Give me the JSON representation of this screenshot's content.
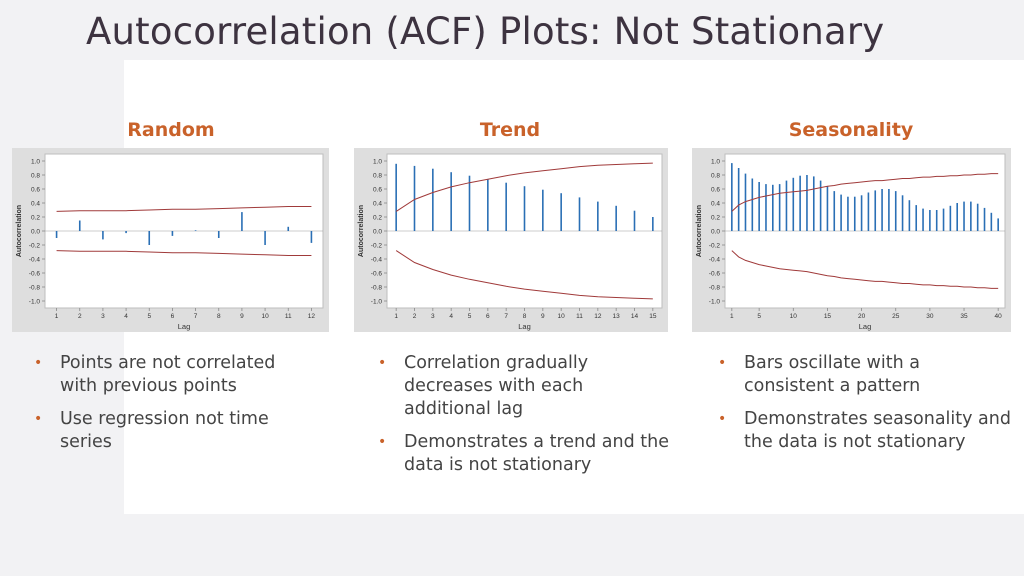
{
  "slide": {
    "title": "Autocorrelation (ACF) Plots: Not Stationary"
  },
  "columns": [
    {
      "heading": "Random",
      "bullets": [
        "Points are not correlated with previous points",
        "Use regression not time series"
      ]
    },
    {
      "heading": "Trend",
      "bullets": [
        "Correlation gradually decreases with each additional lag",
        "Demonstrates a trend and the data is not stationary"
      ]
    },
    {
      "heading": "Seasonality",
      "bullets": [
        "Bars oscillate with a consistent a pattern",
        "Demonstrates seasonality and the data is not stationary"
      ]
    }
  ],
  "colors": {
    "bar": "#2a6fb5",
    "limit": "#a03a3a",
    "heading": "#c9622a"
  },
  "chart_data": [
    {
      "type": "bar",
      "title": "",
      "xlabel": "Lag",
      "ylabel": "Autocorrelation",
      "ylim": [
        -1.1,
        1.1
      ],
      "yticks": [
        1.0,
        0.8,
        0.6,
        0.4,
        0.2,
        0.0,
        -0.2,
        -0.4,
        -0.6,
        -0.8,
        -1.0
      ],
      "ytick_labels": [
        "1.0",
        "0.8",
        "0.6",
        "0.4",
        "0.2",
        "0.0",
        "-0.2",
        "-0.4",
        "-0.6",
        "-0.8",
        "-1.0"
      ],
      "xlim": [
        0.5,
        12.5
      ],
      "xticks": [
        1,
        2,
        3,
        4,
        5,
        6,
        7,
        8,
        9,
        10,
        11,
        12
      ],
      "x": [
        1,
        2,
        3,
        4,
        5,
        6,
        7,
        8,
        9,
        10,
        11,
        12
      ],
      "values": [
        -0.1,
        0.15,
        -0.12,
        -0.03,
        -0.2,
        -0.07,
        0.01,
        -0.1,
        0.27,
        -0.2,
        0.06,
        -0.17
      ],
      "limits_upper": [
        0.28,
        0.29,
        0.29,
        0.29,
        0.3,
        0.31,
        0.31,
        0.32,
        0.33,
        0.34,
        0.35,
        0.35
      ],
      "limits_lower": [
        -0.28,
        -0.29,
        -0.29,
        -0.29,
        -0.3,
        -0.31,
        -0.31,
        -0.32,
        -0.33,
        -0.34,
        -0.35,
        -0.35
      ]
    },
    {
      "type": "bar",
      "title": "",
      "xlabel": "Lag",
      "ylabel": "Autocorrelation",
      "ylim": [
        -1.1,
        1.1
      ],
      "yticks": [
        1.0,
        0.8,
        0.6,
        0.4,
        0.2,
        0.0,
        -0.2,
        -0.4,
        -0.6,
        -0.8,
        -1.0
      ],
      "ytick_labels": [
        "1.0",
        "0.8",
        "0.6",
        "0.4",
        "0.2",
        "0.0",
        "-0.2",
        "-0.4",
        "-0.6",
        "-0.8",
        "-1.0"
      ],
      "xlim": [
        0.5,
        15.5
      ],
      "xticks": [
        1,
        2,
        3,
        4,
        5,
        6,
        7,
        8,
        9,
        10,
        11,
        12,
        13,
        14,
        15
      ],
      "x": [
        1,
        2,
        3,
        4,
        5,
        6,
        7,
        8,
        9,
        10,
        11,
        12,
        13,
        14,
        15
      ],
      "values": [
        0.96,
        0.93,
        0.89,
        0.84,
        0.79,
        0.74,
        0.69,
        0.64,
        0.59,
        0.54,
        0.48,
        0.42,
        0.36,
        0.29,
        0.2
      ],
      "limits_upper": [
        0.28,
        0.45,
        0.55,
        0.63,
        0.69,
        0.74,
        0.79,
        0.83,
        0.86,
        0.89,
        0.92,
        0.94,
        0.95,
        0.96,
        0.97
      ],
      "limits_lower": [
        -0.28,
        -0.45,
        -0.55,
        -0.63,
        -0.69,
        -0.74,
        -0.79,
        -0.83,
        -0.86,
        -0.89,
        -0.92,
        -0.94,
        -0.95,
        -0.96,
        -0.97
      ]
    },
    {
      "type": "bar",
      "title": "",
      "xlabel": "Lag",
      "ylabel": "Autocorrelation",
      "ylim": [
        -1.1,
        1.1
      ],
      "yticks": [
        1.0,
        0.8,
        0.6,
        0.4,
        0.2,
        0.0,
        -0.2,
        -0.4,
        -0.6,
        -0.8,
        -1.0
      ],
      "ytick_labels": [
        "1.0",
        "0.8",
        "0.6",
        "0.4",
        "0.2",
        "0.0",
        "-0.2",
        "-0.4",
        "-0.6",
        "-0.8",
        "-1.0"
      ],
      "xlim": [
        0,
        41
      ],
      "xticks": [
        1,
        5,
        10,
        15,
        20,
        25,
        30,
        35,
        40
      ],
      "x": [
        1,
        2,
        3,
        4,
        5,
        6,
        7,
        8,
        9,
        10,
        11,
        12,
        13,
        14,
        15,
        16,
        17,
        18,
        19,
        20,
        21,
        22,
        23,
        24,
        25,
        26,
        27,
        28,
        29,
        30,
        31,
        32,
        33,
        34,
        35,
        36,
        37,
        38,
        39,
        40
      ],
      "values": [
        0.97,
        0.9,
        0.82,
        0.75,
        0.7,
        0.67,
        0.66,
        0.67,
        0.72,
        0.76,
        0.79,
        0.8,
        0.78,
        0.72,
        0.64,
        0.57,
        0.52,
        0.49,
        0.49,
        0.51,
        0.55,
        0.58,
        0.6,
        0.6,
        0.57,
        0.51,
        0.44,
        0.37,
        0.32,
        0.3,
        0.3,
        0.32,
        0.36,
        0.4,
        0.42,
        0.42,
        0.39,
        0.33,
        0.26,
        0.18
      ],
      "limits_upper": [
        0.28,
        0.37,
        0.42,
        0.45,
        0.48,
        0.5,
        0.52,
        0.54,
        0.55,
        0.56,
        0.57,
        0.58,
        0.6,
        0.62,
        0.64,
        0.65,
        0.67,
        0.68,
        0.69,
        0.7,
        0.71,
        0.72,
        0.72,
        0.73,
        0.74,
        0.75,
        0.75,
        0.76,
        0.77,
        0.77,
        0.78,
        0.78,
        0.79,
        0.79,
        0.8,
        0.8,
        0.81,
        0.81,
        0.82,
        0.82
      ],
      "limits_lower": [
        -0.28,
        -0.37,
        -0.42,
        -0.45,
        -0.48,
        -0.5,
        -0.52,
        -0.54,
        -0.55,
        -0.56,
        -0.57,
        -0.58,
        -0.6,
        -0.62,
        -0.64,
        -0.65,
        -0.67,
        -0.68,
        -0.69,
        -0.7,
        -0.71,
        -0.72,
        -0.72,
        -0.73,
        -0.74,
        -0.75,
        -0.75,
        -0.76,
        -0.77,
        -0.77,
        -0.78,
        -0.78,
        -0.79,
        -0.79,
        -0.8,
        -0.8,
        -0.81,
        -0.81,
        -0.82,
        -0.82
      ]
    }
  ]
}
